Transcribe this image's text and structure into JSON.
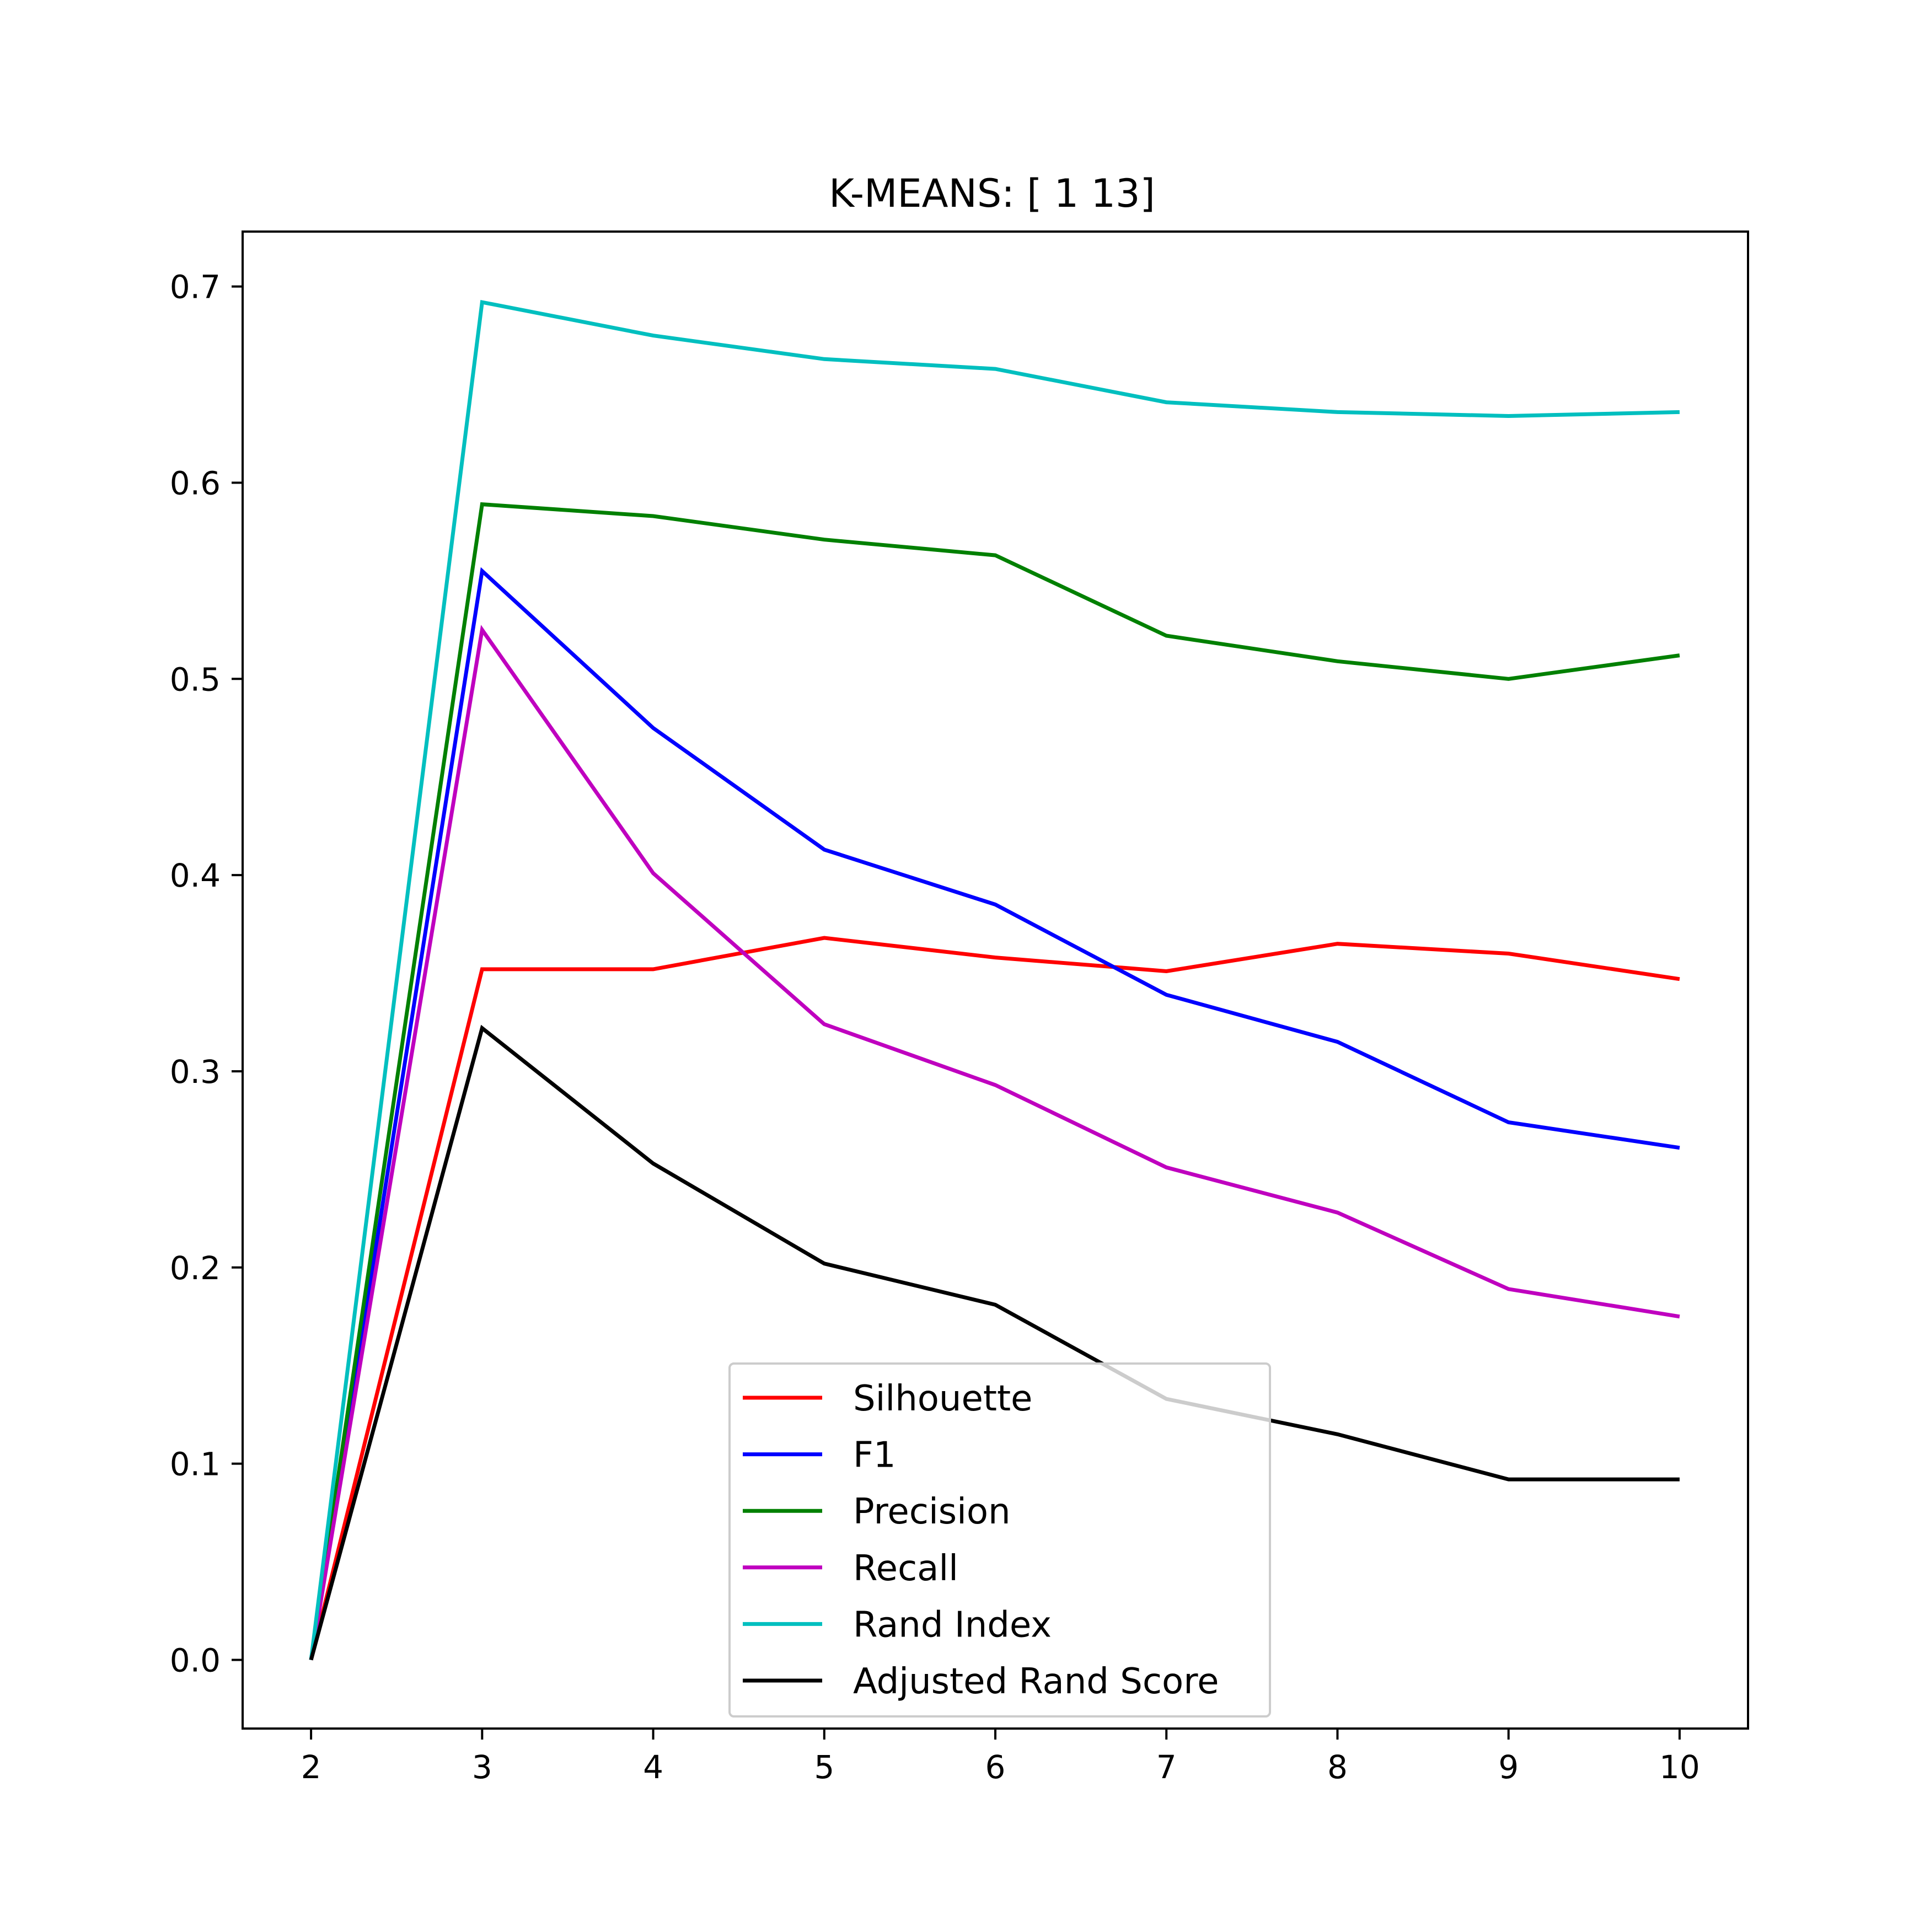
{
  "chart_data": {
    "type": "line",
    "title": "K-MEANS: [ 1 13]",
    "xlabel": "",
    "ylabel": "",
    "x": [
      2,
      3,
      4,
      5,
      6,
      7,
      8,
      9,
      10
    ],
    "xticks": [
      "2",
      "3",
      "4",
      "5",
      "6",
      "7",
      "8",
      "9",
      "10"
    ],
    "yticks": [
      "0.0",
      "0.1",
      "0.2",
      "0.3",
      "0.4",
      "0.5",
      "0.6",
      "0.7"
    ],
    "xlim": [
      1.6,
      10.4
    ],
    "ylim": [
      -0.035,
      0.728
    ],
    "grid": false,
    "legend_position": "lower-center",
    "series": [
      {
        "name": "Silhouette",
        "color": "#ff0000",
        "values": [
          0.0,
          0.352,
          0.352,
          0.368,
          0.358,
          0.351,
          0.365,
          0.36,
          0.347
        ]
      },
      {
        "name": "F1",
        "color": "#0000ff",
        "values": [
          0.0,
          0.555,
          0.475,
          0.413,
          0.385,
          0.339,
          0.315,
          0.274,
          0.261
        ]
      },
      {
        "name": "Precision",
        "color": "#008000",
        "values": [
          0.0,
          0.589,
          0.583,
          0.571,
          0.563,
          0.522,
          0.509,
          0.5,
          0.512
        ]
      },
      {
        "name": "Recall",
        "color": "#bf00bf",
        "values": [
          0.0,
          0.525,
          0.401,
          0.324,
          0.293,
          0.251,
          0.228,
          0.189,
          0.175
        ]
      },
      {
        "name": "Rand Index",
        "color": "#00bfbf",
        "values": [
          0.0,
          0.692,
          0.675,
          0.663,
          0.658,
          0.641,
          0.636,
          0.634,
          0.636
        ]
      },
      {
        "name": "Adjusted Rand Score",
        "color": "#000000",
        "values": [
          0.0,
          0.322,
          0.253,
          0.202,
          0.181,
          0.133,
          0.115,
          0.092,
          0.092
        ]
      }
    ]
  }
}
